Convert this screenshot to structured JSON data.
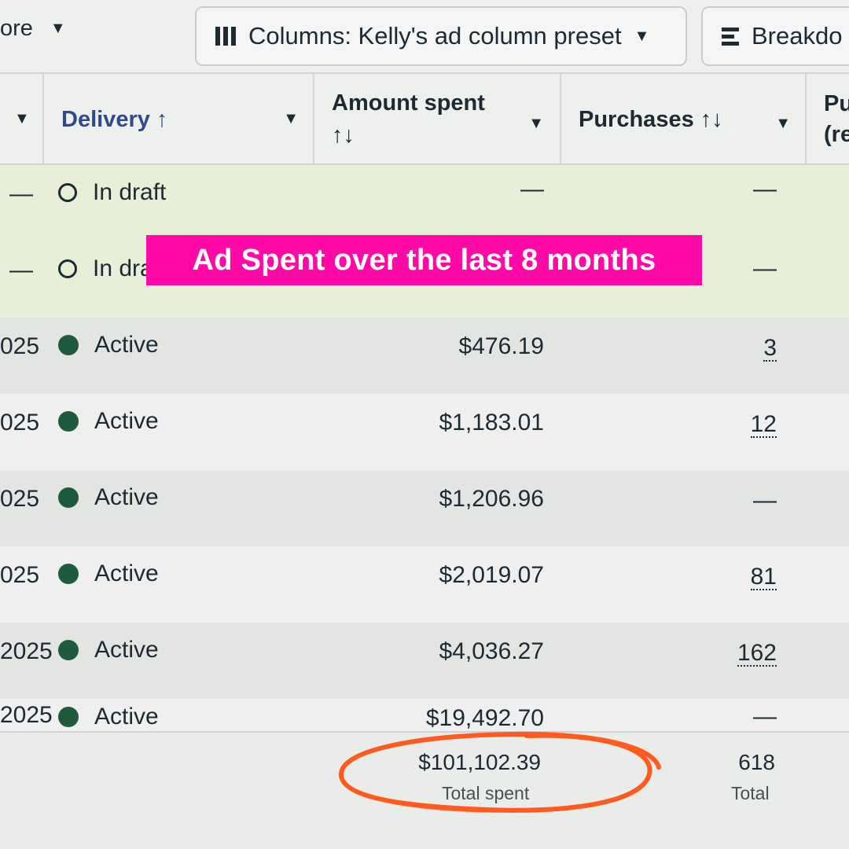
{
  "toolbar": {
    "more_label": "ore",
    "columns_label": "Columns: Kelly's ad column preset",
    "breakdown_label": "Breakdo",
    "columns_icon": "columns-icon",
    "breakdown_icon": "breakdown-icon"
  },
  "table": {
    "headers": {
      "delivery": "Delivery ↑",
      "amount_line1": "Amount spent",
      "amount_line2": "↑↓",
      "purchases": "Purchases ↑↓",
      "next_line1": "Pu",
      "next_line2": "(re"
    },
    "rows": [
      {
        "date": "",
        "lead": "—",
        "status": "In draft",
        "status_type": "draft",
        "amount": "—",
        "purchases": "—"
      },
      {
        "date": "",
        "lead": "—",
        "status": "In dra",
        "status_type": "draft",
        "amount": "",
        "purchases": "—"
      },
      {
        "date": "025",
        "lead": "",
        "status": "Active",
        "status_type": "active",
        "amount": "$476.19",
        "purchases": "3"
      },
      {
        "date": "025",
        "lead": "",
        "status": "Active",
        "status_type": "active",
        "amount": "$1,183.01",
        "purchases": "12"
      },
      {
        "date": "025",
        "lead": "",
        "status": "Active",
        "status_type": "active",
        "amount": "$1,206.96",
        "purchases": "—"
      },
      {
        "date": "025",
        "lead": "",
        "status": "Active",
        "status_type": "active",
        "amount": "$2,019.07",
        "purchases": "81"
      },
      {
        "date": "2025",
        "lead": "",
        "status": "Active",
        "status_type": "active",
        "amount": "$4,036.27",
        "purchases": "162"
      },
      {
        "date": "2025",
        "lead": "",
        "status": "Active",
        "status_type": "active",
        "amount": "$19,492.70",
        "purchases": "—"
      }
    ],
    "totals": {
      "amount": "$101,102.39",
      "amount_label": "Total spent",
      "purchases": "618",
      "purchases_label": "Total"
    }
  },
  "overlay": {
    "banner_text": "Ad Spent over the last 8 months",
    "banner_color": "#ff0aa6",
    "circle_color": "#ff5a1f"
  }
}
